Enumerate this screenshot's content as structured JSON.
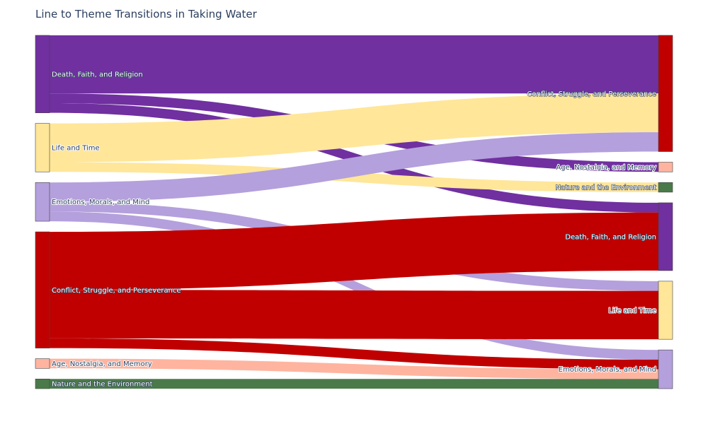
{
  "chart_data": {
    "type": "sankey",
    "title": "Line to Theme Transitions in Taking Water",
    "colors": {
      "Death, Faith, and Religion": "#7030a0",
      "Life and Time": "#ffe699",
      "Emotions, Morals, and Mind": "#b4a0dc",
      "Conflict, Struggle, and Perseverance": "#c00000",
      "Age, Nostalgia, and Memory": "#ffb4a0",
      "Nature and the Environment": "#4a7a4a"
    },
    "source_nodes": [
      "Death, Faith, and Religion",
      "Life and Time",
      "Emotions, Morals, and Mind",
      "Conflict, Struggle, and Perseverance",
      "Age, Nostalgia, and Memory",
      "Nature and the Environment"
    ],
    "target_nodes": [
      "Conflict, Struggle, and Perseverance",
      "Age, Nostalgia, and Memory",
      "Nature and the Environment",
      "Death, Faith, and Religion",
      "Life and Time",
      "Emotions, Morals, and Mind"
    ],
    "links": [
      {
        "source": "Death, Faith, and Religion",
        "target": "Conflict, Struggle, and Perseverance",
        "value": 6
      },
      {
        "source": "Death, Faith, and Religion",
        "target": "Age, Nostalgia, and Memory",
        "value": 1
      },
      {
        "source": "Death, Faith, and Religion",
        "target": "Death, Faith, and Religion",
        "value": 1
      },
      {
        "source": "Life and Time",
        "target": "Conflict, Struggle, and Perseverance",
        "value": 4
      },
      {
        "source": "Life and Time",
        "target": "Nature and the Environment",
        "value": 1
      },
      {
        "source": "Emotions, Morals, and Mind",
        "target": "Conflict, Struggle, and Perseverance",
        "value": 2
      },
      {
        "source": "Emotions, Morals, and Mind",
        "target": "Life and Time",
        "value": 1
      },
      {
        "source": "Emotions, Morals, and Mind",
        "target": "Emotions, Morals, and Mind",
        "value": 1
      },
      {
        "source": "Conflict, Struggle, and Perseverance",
        "target": "Death, Faith, and Religion",
        "value": 6
      },
      {
        "source": "Conflict, Struggle, and Perseverance",
        "target": "Life and Time",
        "value": 5
      },
      {
        "source": "Conflict, Struggle, and Perseverance",
        "target": "Emotions, Morals, and Mind",
        "value": 1
      },
      {
        "source": "Age, Nostalgia, and Memory",
        "target": "Emotions, Morals, and Mind",
        "value": 1
      },
      {
        "source": "Nature and the Environment",
        "target": "Emotions, Morals, and Mind",
        "value": 1
      }
    ]
  }
}
